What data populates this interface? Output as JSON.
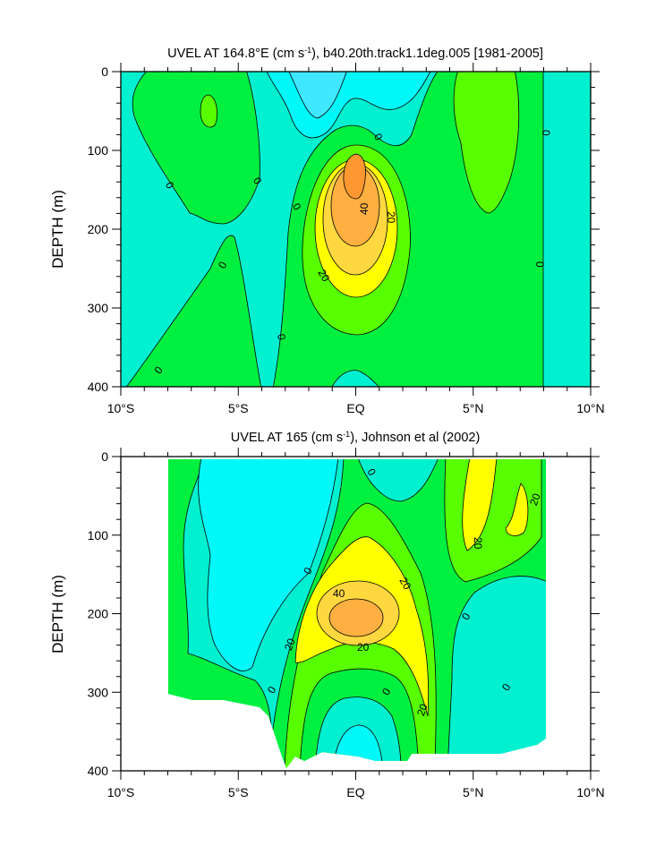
{
  "chart_data": [
    {
      "type": "contour",
      "title": "UVEL AT 164.8°E (cm s",
      "title_sup": "-1",
      "title_rest": "), b40.20th.track1.1deg.005 [1981-2005]",
      "ylabel": "DEPTH (m)",
      "xlabel": "",
      "xlim": [
        -10,
        10
      ],
      "ylim": [
        400,
        0
      ],
      "xticks": [
        {
          "v": -10,
          "label": "10°S"
        },
        {
          "v": -5,
          "label": "5°S"
        },
        {
          "v": 0,
          "label": "EQ"
        },
        {
          "v": 5,
          "label": "5°N"
        },
        {
          "v": 10,
          "label": "10°N"
        }
      ],
      "yticks": [
        {
          "v": 0,
          "label": "0"
        },
        {
          "v": 100,
          "label": "100"
        },
        {
          "v": 200,
          "label": "200"
        },
        {
          "v": 300,
          "label": "300"
        },
        {
          "v": 400,
          "label": "400"
        }
      ],
      "contour_labels": [
        "0",
        "0",
        "0",
        "0",
        "0",
        "0",
        "0",
        "0",
        "0",
        "40",
        "20",
        "20"
      ],
      "max_core": {
        "lon": 0,
        "depth": 180,
        "value_range": "> 50"
      }
    },
    {
      "type": "contour",
      "title": "UVEL AT 165 (cm s",
      "title_sup": "-1",
      "title_rest": "), Johnson et al (2002)",
      "ylabel": "DEPTH (m)",
      "xlabel": "",
      "xlim": [
        -10,
        10
      ],
      "ylim": [
        400,
        0
      ],
      "xticks": [
        {
          "v": -10,
          "label": "10°S"
        },
        {
          "v": -5,
          "label": "5°S"
        },
        {
          "v": 0,
          "label": "EQ"
        },
        {
          "v": 5,
          "label": "5°N"
        },
        {
          "v": 10,
          "label": "10°N"
        }
      ],
      "yticks": [
        {
          "v": 0,
          "label": "0"
        },
        {
          "v": 100,
          "label": "100"
        },
        {
          "v": 200,
          "label": "200"
        },
        {
          "v": 300,
          "label": "300"
        },
        {
          "v": 400,
          "label": "400"
        }
      ],
      "contour_labels": [
        "0",
        "0",
        "0",
        "0",
        "0",
        "0",
        "40",
        "20",
        "20",
        "20",
        "20",
        "20",
        "20"
      ],
      "data_extent": {
        "lon": [
          -8,
          8
        ]
      }
    }
  ],
  "colors": {
    "lt_-20": "#40e8ff",
    "-20_-10": "#00f8f8",
    "-10_0": "#00f0d0",
    "0_10": "#00f040",
    "10_20": "#58ff00",
    "20_30": "#ffff00",
    "30_40": "#ffd840",
    "40_50": "#ffb040",
    "gt_50": "#ff9830"
  }
}
